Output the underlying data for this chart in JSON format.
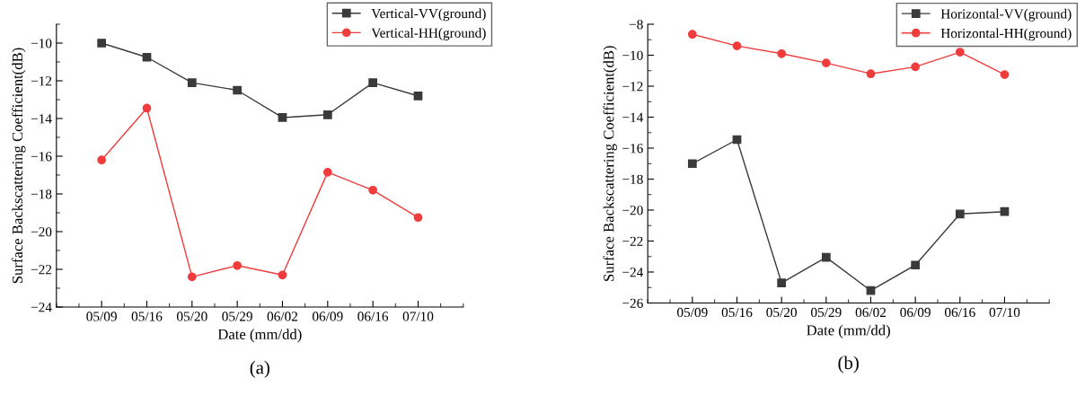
{
  "chart_data": [
    {
      "type": "line",
      "xlabel": "Date (mm/dd)",
      "ylabel": "Surface Backscattering Coefficient(dB)",
      "categories": [
        "05/09",
        "05/16",
        "05/20",
        "05/29",
        "06/02",
        "06/09",
        "06/16",
        "07/10"
      ],
      "ylim": [
        -24,
        -9
      ],
      "yticks": [
        -24,
        -22,
        -20,
        -18,
        -16,
        -14,
        -12,
        -10
      ],
      "grid": false,
      "legend": "top right",
      "annotations": [
        "(a)"
      ],
      "series": [
        {
          "name": "Vertical-VV(ground)",
          "color": "#3a3a3a",
          "marker": "square",
          "values": [
            -10,
            -10.75,
            -12.1,
            -12.5,
            -13.95,
            -13.8,
            -12.1,
            -12.8
          ]
        },
        {
          "name": "Vertical-HH(ground)",
          "color": "#f03c3c",
          "marker": "circle",
          "values": [
            -16.2,
            -13.45,
            -22.4,
            -21.8,
            -22.3,
            -16.85,
            -17.8,
            -19.25
          ]
        }
      ]
    },
    {
      "type": "line",
      "xlabel": "Date (mm/dd)",
      "ylabel": "Surface Backscattering Coefficient(dB)",
      "categories": [
        "05/09",
        "05/16",
        "05/20",
        "05/29",
        "06/02",
        "06/09",
        "06/16",
        "07/10"
      ],
      "ylim": [
        -26,
        -8
      ],
      "yticks": [
        -26,
        -24,
        -22,
        -20,
        -18,
        -16,
        -14,
        -12,
        -10,
        -8
      ],
      "grid": false,
      "legend": "top right",
      "annotations": [
        "(b)"
      ],
      "series": [
        {
          "name": "Horizontal-VV(ground)",
          "color": "#3a3a3a",
          "marker": "square",
          "values": [
            -17.0,
            -15.45,
            -24.7,
            -23.05,
            -25.2,
            -23.55,
            -20.25,
            -20.1
          ]
        },
        {
          "name": "Horizontal-HH(ground)",
          "color": "#f03c3c",
          "marker": "circle",
          "values": [
            -8.65,
            -9.4,
            -9.9,
            -10.5,
            -11.2,
            -10.75,
            -9.8,
            -11.25
          ]
        }
      ]
    }
  ]
}
